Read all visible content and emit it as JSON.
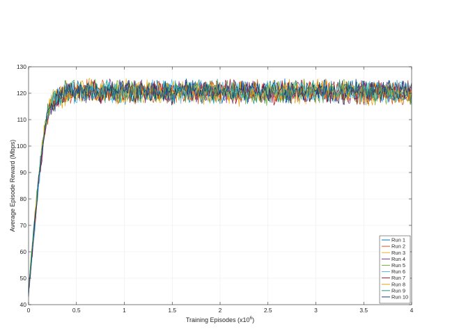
{
  "chart_data": {
    "type": "line",
    "title": "",
    "xlabel": "Training Episodes (x10",
    "xlabel_superscript": "6",
    "xlabel_suffix": ")",
    "ylabel": "Average Episode Reward (Mbps)",
    "xlim": [
      0,
      4
    ],
    "ylim": [
      40,
      130
    ],
    "x_ticks": [
      0,
      0.5,
      1,
      1.5,
      2,
      2.5,
      3,
      3.5,
      4
    ],
    "x_tick_labels": [
      "0",
      "0.5",
      "1",
      "1.5",
      "2",
      "2.5",
      "3",
      "3.5",
      "4"
    ],
    "y_ticks": [
      40,
      50,
      60,
      70,
      80,
      90,
      100,
      110,
      120,
      130
    ],
    "y_tick_labels": [
      "40",
      "50",
      "60",
      "70",
      "80",
      "90",
      "100",
      "110",
      "120",
      "130"
    ],
    "grid": true,
    "legend_position": "bottom-right",
    "x": [
      0,
      0.02,
      0.04,
      0.06,
      0.08,
      0.1,
      0.12,
      0.14,
      0.16,
      0.18,
      0.2,
      0.22,
      0.25,
      0.3,
      0.35,
      0.4,
      0.5,
      0.6,
      0.8,
      1.0,
      1.5,
      2.0,
      2.5,
      3.0,
      3.5,
      4.0
    ],
    "series": [
      {
        "name": "Run 1",
        "color": "#0072bd",
        "values": [
          45,
          53,
          61,
          69,
          77,
          85,
          92,
          98,
          104,
          109,
          112,
          114,
          117,
          119,
          120,
          120,
          121,
          120,
          121,
          120,
          121,
          120,
          121,
          120,
          121,
          121
        ]
      },
      {
        "name": "Run 2",
        "color": "#d95319",
        "values": [
          44,
          52,
          60,
          68,
          76,
          84,
          91,
          97,
          103,
          108,
          111,
          114,
          116,
          118,
          119,
          120,
          120,
          121,
          120,
          121,
          120,
          121,
          120,
          121,
          120,
          120
        ]
      },
      {
        "name": "Run 3",
        "color": "#edb120",
        "values": [
          46,
          54,
          62,
          70,
          78,
          86,
          93,
          99,
          104,
          109,
          112,
          115,
          117,
          119,
          120,
          121,
          120,
          121,
          120,
          121,
          120,
          120,
          121,
          120,
          121,
          120
        ]
      },
      {
        "name": "Run 4",
        "color": "#7e2f8e",
        "values": [
          45,
          53,
          61,
          69,
          77,
          85,
          91,
          97,
          103,
          108,
          111,
          114,
          116,
          118,
          119,
          120,
          121,
          120,
          121,
          120,
          121,
          120,
          121,
          120,
          120,
          121
        ]
      },
      {
        "name": "Run 5",
        "color": "#77ac30",
        "values": [
          46,
          55,
          63,
          71,
          79,
          87,
          94,
          100,
          105,
          110,
          113,
          115,
          117,
          119,
          120,
          121,
          120,
          121,
          120,
          121,
          120,
          121,
          120,
          121,
          120,
          120
        ]
      },
      {
        "name": "Run 6",
        "color": "#4dbeee",
        "values": [
          44,
          52,
          60,
          68,
          76,
          84,
          91,
          97,
          103,
          108,
          111,
          114,
          116,
          118,
          119,
          120,
          120,
          120,
          121,
          120,
          121,
          120,
          121,
          120,
          121,
          120
        ]
      },
      {
        "name": "Run 7",
        "color": "#a2142f",
        "values": [
          45,
          53,
          61,
          69,
          77,
          85,
          92,
          98,
          104,
          109,
          112,
          114,
          117,
          119,
          120,
          120,
          121,
          120,
          120,
          121,
          120,
          121,
          120,
          121,
          120,
          121
        ]
      },
      {
        "name": "Run 8",
        "color": "#f0a30a",
        "values": [
          46,
          54,
          62,
          70,
          78,
          86,
          93,
          99,
          104,
          109,
          112,
          115,
          117,
          118,
          119,
          120,
          120,
          121,
          120,
          120,
          121,
          120,
          120,
          121,
          120,
          120
        ]
      },
      {
        "name": "Run 9",
        "color": "#1a9e8c",
        "values": [
          45,
          54,
          62,
          70,
          78,
          86,
          93,
          99,
          105,
          110,
          113,
          115,
          117,
          119,
          120,
          121,
          121,
          120,
          121,
          120,
          121,
          121,
          120,
          121,
          121,
          120
        ]
      },
      {
        "name": "Run 10",
        "color": "#0e3f73",
        "values": [
          44,
          53,
          61,
          69,
          77,
          85,
          92,
          98,
          104,
          109,
          112,
          114,
          116,
          118,
          120,
          120,
          121,
          121,
          120,
          121,
          120,
          121,
          121,
          120,
          121,
          121
        ]
      }
    ]
  }
}
